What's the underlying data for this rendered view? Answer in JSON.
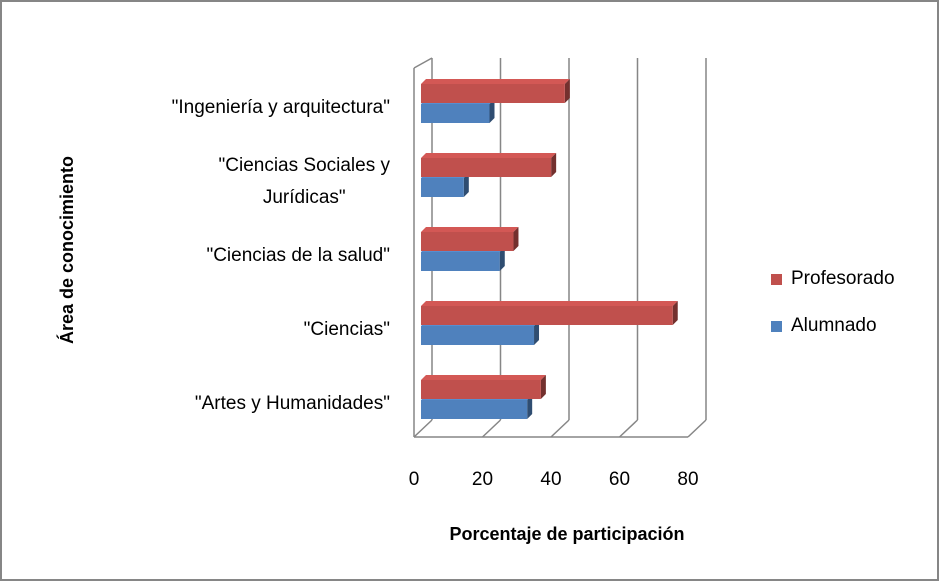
{
  "chart_data": {
    "type": "bar3d_horizontal",
    "categories": [
      "\"Artes y Humanidades\"",
      "\"Ciencias\"",
      "\"Ciencias de la salud\"",
      "\"Ciencias Sociales y\nJurídicas\"",
      "\"Ingeniería y arquitectura\""
    ],
    "series": [
      {
        "name": "Alumnado",
        "color": "#4f81bd",
        "values": [
          31,
          33,
          23,
          12.5,
          20
        ]
      },
      {
        "name": "Profesorado",
        "color": "#c0504d",
        "values": [
          35,
          73.5,
          27,
          38,
          42
        ]
      }
    ],
    "xlim": [
      0,
      80
    ],
    "xticks": [
      0,
      20,
      40,
      60,
      80
    ],
    "grid": true,
    "xlabel": "Porcentaje de participación",
    "ylabel": "Área de conocimiento",
    "legend": "right"
  }
}
